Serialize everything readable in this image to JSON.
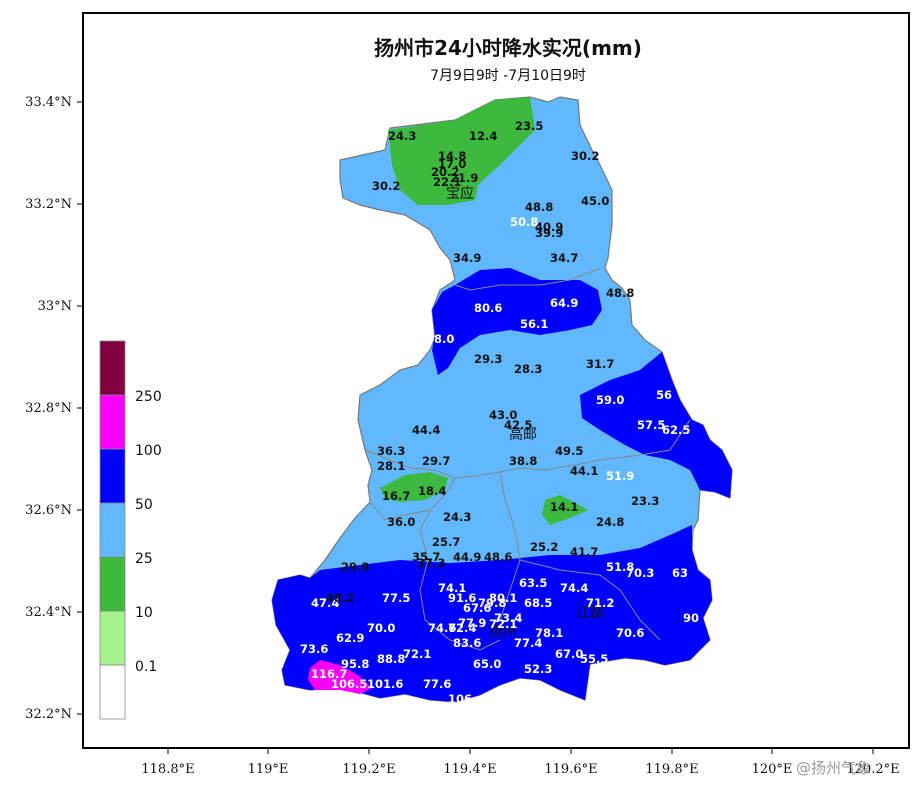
{
  "title": "扬州市24小时降水实况(mm)",
  "subtitle": "7月9日9时 -7月10日9时",
  "x_ticks": [
    "118.8°E",
    "119°E",
    "119.2°E",
    "119.4°E",
    "119.6°E",
    "119.8°E",
    "120°E",
    "120.2°E"
  ],
  "y_ticks": [
    "32.2°N",
    "32.4°N",
    "32.6°N",
    "32.8°N",
    "33°N",
    "33.2°N",
    "33.4°N"
  ],
  "legend": {
    "labels": [
      "0.1",
      "10",
      "25",
      "50",
      "100",
      "250"
    ],
    "colors": [
      "#ffffff",
      "#a6f28f",
      "#3dba3d",
      "#61b8ff",
      "#0000fe",
      "#fa00fa",
      "#800040"
    ]
  },
  "cities": [
    "宝应",
    "高邮",
    "江都",
    "扬州"
  ],
  "watermark": "@扬州气象",
  "values": [
    {
      "v": "24.3",
      "c": "d"
    },
    {
      "v": "12.4",
      "c": "d"
    },
    {
      "v": "23.5",
      "c": "d"
    },
    {
      "v": "14.8",
      "c": "d"
    },
    {
      "v": "17.0",
      "c": "d"
    },
    {
      "v": "20.2",
      "c": "d"
    },
    {
      "v": "21.9",
      "c": "d"
    },
    {
      "v": "22.1",
      "c": "d"
    },
    {
      "v": "30.2",
      "c": "d"
    },
    {
      "v": "30.2",
      "c": "d"
    },
    {
      "v": "48.8",
      "c": "d"
    },
    {
      "v": "45.0",
      "c": "d"
    },
    {
      "v": "50.8",
      "c": "w"
    },
    {
      "v": "40.9",
      "c": "d"
    },
    {
      "v": "39.9",
      "c": "d"
    },
    {
      "v": "34.9",
      "c": "d"
    },
    {
      "v": "34.7",
      "c": "d"
    },
    {
      "v": "48.8",
      "c": "d"
    },
    {
      "v": "80.6",
      "c": "w"
    },
    {
      "v": "64.9",
      "c": "w"
    },
    {
      "v": "56.1",
      "c": "w"
    },
    {
      "v": "8.0",
      "c": "w"
    },
    {
      "v": "29.3",
      "c": "d"
    },
    {
      "v": "28.3",
      "c": "d"
    },
    {
      "v": "31.7",
      "c": "d"
    },
    {
      "v": "59.0",
      "c": "w"
    },
    {
      "v": "56",
      "c": "w"
    },
    {
      "v": "57.5",
      "c": "w"
    },
    {
      "v": "62.5",
      "c": "w"
    },
    {
      "v": "43.0",
      "c": "d"
    },
    {
      "v": "42.5",
      "c": "d"
    },
    {
      "v": "44.4",
      "c": "d"
    },
    {
      "v": "36.3",
      "c": "d"
    },
    {
      "v": "28.1",
      "c": "d"
    },
    {
      "v": "29.7",
      "c": "d"
    },
    {
      "v": "49.5",
      "c": "d"
    },
    {
      "v": "38.8",
      "c": "d"
    },
    {
      "v": "44.1",
      "c": "d"
    },
    {
      "v": "51.9",
      "c": "w"
    },
    {
      "v": "16.7",
      "c": "d"
    },
    {
      "v": "18.4",
      "c": "d"
    },
    {
      "v": "14.1",
      "c": "d"
    },
    {
      "v": "23.3",
      "c": "d"
    },
    {
      "v": "36.0",
      "c": "d"
    },
    {
      "v": "24.3",
      "c": "d"
    },
    {
      "v": "24.8",
      "c": "d"
    },
    {
      "v": "25.7",
      "c": "d"
    },
    {
      "v": "35.7",
      "c": "d"
    },
    {
      "v": "37.3",
      "c": "d"
    },
    {
      "v": "44.9",
      "c": "d"
    },
    {
      "v": "48.6",
      "c": "d"
    },
    {
      "v": "25.2",
      "c": "d"
    },
    {
      "v": "41.7",
      "c": "d"
    },
    {
      "v": "29.8",
      "c": "d"
    },
    {
      "v": "51.8",
      "c": "w"
    },
    {
      "v": "70.3",
      "c": "w"
    },
    {
      "v": "63",
      "c": "w"
    },
    {
      "v": "74.1",
      "c": "w"
    },
    {
      "v": "63.5",
      "c": "w"
    },
    {
      "v": "74.4",
      "c": "w"
    },
    {
      "v": "47.4",
      "c": "w"
    },
    {
      "v": "48.2",
      "c": "d"
    },
    {
      "v": "77.5",
      "c": "w"
    },
    {
      "v": "91.6",
      "c": "w"
    },
    {
      "v": "67.6",
      "c": "w"
    },
    {
      "v": "79.8",
      "c": "w"
    },
    {
      "v": "80.1",
      "c": "w"
    },
    {
      "v": "68.5",
      "c": "w"
    },
    {
      "v": "71.2",
      "c": "w"
    },
    {
      "v": "90",
      "c": "w"
    },
    {
      "v": "70.0",
      "c": "w"
    },
    {
      "v": "74.6",
      "c": "w"
    },
    {
      "v": "72.4",
      "c": "w"
    },
    {
      "v": "77.9",
      "c": "w"
    },
    {
      "v": "73.4",
      "c": "w"
    },
    {
      "v": "72.1",
      "c": "w"
    },
    {
      "v": "78.1",
      "c": "w"
    },
    {
      "v": "70.6",
      "c": "w"
    },
    {
      "v": "62.9",
      "c": "w"
    },
    {
      "v": "73.6",
      "c": "w"
    },
    {
      "v": "83.6",
      "c": "w"
    },
    {
      "v": "77.4",
      "c": "w"
    },
    {
      "v": "72.1",
      "c": "w"
    },
    {
      "v": "67.0",
      "c": "w"
    },
    {
      "v": "55.5",
      "c": "w"
    },
    {
      "v": "95.8",
      "c": "w"
    },
    {
      "v": "88.8",
      "c": "w"
    },
    {
      "v": "65.0",
      "c": "w"
    },
    {
      "v": "52.3",
      "c": "w"
    },
    {
      "v": "116.7",
      "c": "w"
    },
    {
      "v": "106.5",
      "c": "w"
    },
    {
      "v": "101.6",
      "c": "w"
    },
    {
      "v": "77.6",
      "c": "w"
    },
    {
      "v": "106",
      "c": "w"
    }
  ]
}
